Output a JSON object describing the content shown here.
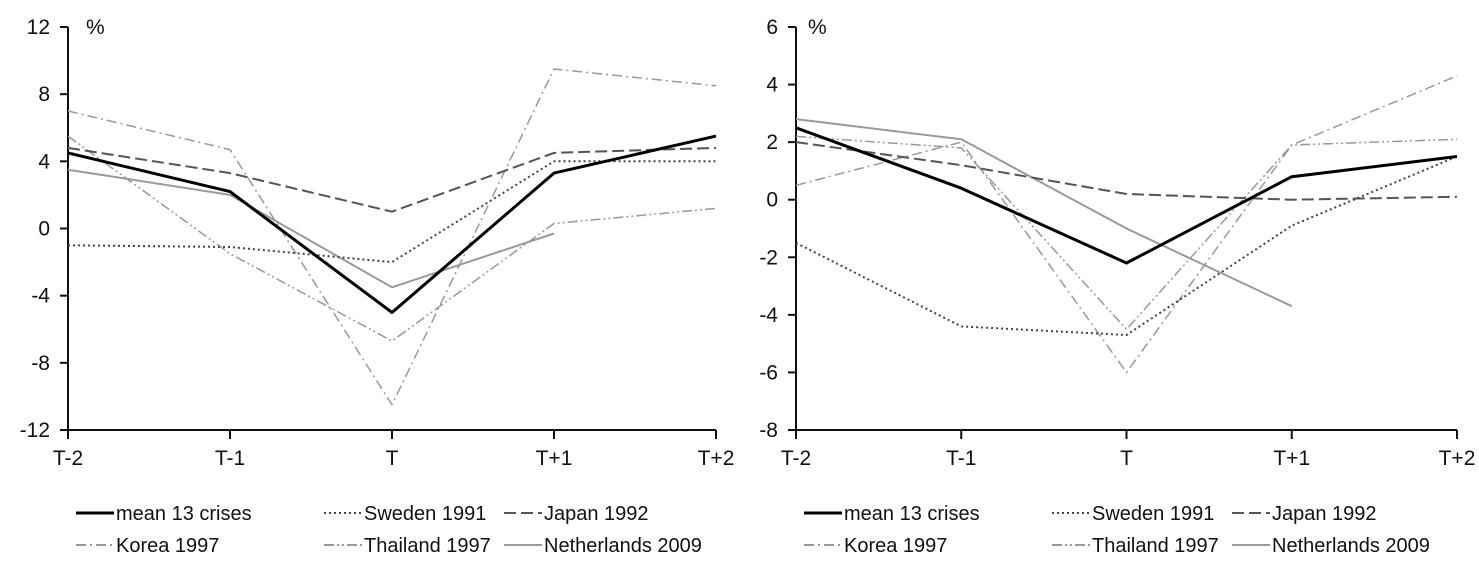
{
  "chart_data": [
    {
      "type": "line",
      "unit_label": "%",
      "categories": [
        "T-2",
        "T-1",
        "T",
        "T+1",
        "T+2"
      ],
      "ylim": [
        -12,
        12
      ],
      "yticks": [
        "12",
        "8",
        "4",
        "0",
        "-4",
        "-8",
        "-12"
      ],
      "ytick_values": [
        12,
        8,
        4,
        0,
        -4,
        -8,
        -12
      ],
      "grid": false,
      "series": [
        {
          "name": "mean 13 crises",
          "values": [
            4.5,
            2.2,
            -5.0,
            3.3,
            5.5
          ]
        },
        {
          "name": "Sweden 1991",
          "values": [
            -1.0,
            -1.1,
            -2.0,
            4.0,
            4.0
          ]
        },
        {
          "name": "Japan 1992",
          "values": [
            4.8,
            3.3,
            1.0,
            4.5,
            4.8
          ]
        },
        {
          "name": "Korea 1997",
          "values": [
            7.0,
            4.7,
            -10.5,
            9.5,
            8.5
          ]
        },
        {
          "name": "Thailand 1997",
          "values": [
            5.5,
            -1.5,
            -6.7,
            0.3,
            1.2
          ]
        },
        {
          "name": "Netherlands 2009",
          "values": [
            3.5,
            2.0,
            -3.5,
            -0.3,
            null
          ]
        }
      ]
    },
    {
      "type": "line",
      "unit_label": "%",
      "categories": [
        "T-2",
        "T-1",
        "T",
        "T+1",
        "T+2"
      ],
      "ylim": [
        -8,
        6
      ],
      "yticks": [
        "6",
        "4",
        "2",
        "0",
        "-2",
        "-4",
        "-6",
        "-8"
      ],
      "ytick_values": [
        6,
        4,
        2,
        0,
        -2,
        -4,
        -6,
        -8
      ],
      "grid": false,
      "series": [
        {
          "name": "mean 13 crises",
          "values": [
            2.5,
            0.4,
            -2.2,
            0.8,
            1.5
          ]
        },
        {
          "name": "Sweden 1991",
          "values": [
            -1.5,
            -4.4,
            -4.7,
            -0.9,
            1.5
          ]
        },
        {
          "name": "Japan 1992",
          "values": [
            2.0,
            1.2,
            0.2,
            0.0,
            0.1
          ]
        },
        {
          "name": "Korea 1997",
          "values": [
            0.5,
            2.0,
            -6.0,
            1.9,
            4.3
          ]
        },
        {
          "name": "Thailand 1997",
          "values": [
            2.2,
            1.8,
            -4.5,
            1.9,
            2.1
          ]
        },
        {
          "name": "Netherlands 2009",
          "values": [
            2.8,
            2.1,
            -1.0,
            -3.7,
            null
          ]
        }
      ]
    }
  ],
  "series_styles": [
    {
      "color": "#000000",
      "dash": "",
      "width": 3
    },
    {
      "color": "#444444",
      "dash": "2,3",
      "width": 2
    },
    {
      "color": "#555555",
      "dash": "12,5",
      "width": 2
    },
    {
      "color": "#999999",
      "dash": "10,4,2,4",
      "width": 1.5
    },
    {
      "color": "#999999",
      "dash": "10,3,2,3,2,3",
      "width": 1.5
    },
    {
      "color": "#9a9a9a",
      "dash": "",
      "width": 2
    }
  ]
}
